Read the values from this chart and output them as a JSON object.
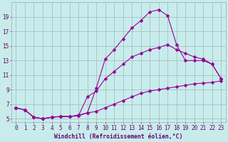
{
  "xlabel": "Windchill (Refroidissement éolien,°C)",
  "background_color": "#c8ecec",
  "line_color": "#990099",
  "curve_spike_x": [
    0,
    1,
    2,
    3,
    4,
    5,
    6,
    7,
    8,
    9,
    10,
    11,
    12,
    13,
    14,
    15,
    16,
    17,
    18,
    19,
    20,
    21,
    22,
    23
  ],
  "curve_spike_y": [
    6.5,
    6.2,
    5.2,
    5.0,
    5.2,
    5.3,
    5.3,
    5.4,
    5.8,
    9.2,
    13.2,
    14.5,
    16.0,
    17.5,
    18.5,
    19.7,
    20.0,
    19.2,
    15.2,
    13.0,
    13.0,
    13.0,
    12.5,
    10.5
  ],
  "curve_mid_x": [
    0,
    1,
    2,
    3,
    4,
    5,
    6,
    7,
    8,
    9,
    10,
    11,
    12,
    13,
    14,
    15,
    16,
    17,
    18,
    19,
    20,
    21,
    22,
    23
  ],
  "curve_mid_y": [
    6.5,
    6.2,
    5.2,
    5.0,
    5.2,
    5.3,
    5.3,
    5.4,
    8.0,
    8.8,
    10.5,
    11.5,
    12.5,
    13.5,
    14.0,
    14.5,
    14.8,
    15.2,
    14.5,
    14.0,
    13.5,
    13.2,
    12.5,
    10.5
  ],
  "curve_low_x": [
    0,
    1,
    2,
    3,
    4,
    5,
    6,
    7,
    8,
    9,
    10,
    11,
    12,
    13,
    14,
    15,
    16,
    17,
    18,
    19,
    20,
    21,
    22,
    23
  ],
  "curve_low_y": [
    6.5,
    6.2,
    5.2,
    5.0,
    5.2,
    5.3,
    5.3,
    5.5,
    5.8,
    6.0,
    6.5,
    7.0,
    7.5,
    8.0,
    8.5,
    8.8,
    9.0,
    9.2,
    9.4,
    9.6,
    9.8,
    9.9,
    10.0,
    10.2
  ],
  "xlim": [
    -0.5,
    23.5
  ],
  "ylim": [
    4.5,
    21.0
  ],
  "yticks": [
    5,
    7,
    9,
    11,
    13,
    15,
    17,
    19
  ],
  "xticks": [
    0,
    1,
    2,
    3,
    4,
    5,
    6,
    7,
    8,
    9,
    10,
    11,
    12,
    13,
    14,
    15,
    16,
    17,
    18,
    19,
    20,
    21,
    22,
    23
  ],
  "grid_color": "#a0b8b8",
  "tick_color": "#660066",
  "label_color": "#660066",
  "fontsize_label": 5.8,
  "fontsize_tick": 5.5,
  "lw": 0.8,
  "ms": 2.5
}
